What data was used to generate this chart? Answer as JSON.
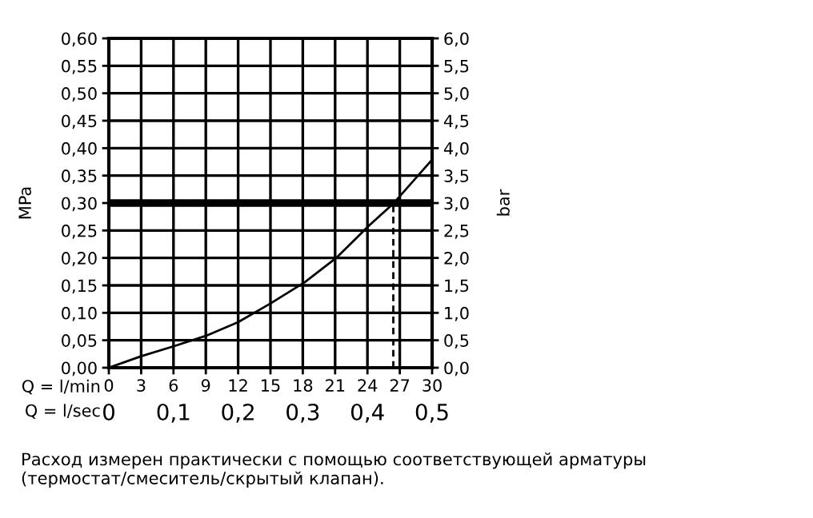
{
  "chart_data": {
    "type": "line",
    "xlabel": "Q = l/min",
    "x2label": "Q = l/sec",
    "ylabel": "MPa",
    "y2label": "bar",
    "xlim": [
      0,
      30
    ],
    "xticks": [
      0,
      3,
      6,
      9,
      12,
      15,
      18,
      21,
      24,
      27,
      30
    ],
    "x2lim": [
      0,
      0.5
    ],
    "x2ticks": [
      0,
      {
        "value": 0.1,
        "label": "0,1"
      },
      {
        "value": 0.2,
        "label": "0,2"
      },
      {
        "value": 0.3,
        "label": "0,3"
      },
      {
        "value": 0.4,
        "label": "0,4"
      },
      {
        "value": 0.5,
        "label": "0,5"
      }
    ],
    "ylim": [
      0,
      0.6
    ],
    "yticks": [
      {
        "value": 0,
        "label": "0,00"
      },
      {
        "value": 0.05,
        "label": "0,05"
      },
      {
        "value": 0.1,
        "label": "0,10"
      },
      {
        "value": 0.15,
        "label": "0,15"
      },
      {
        "value": 0.2,
        "label": "0,20"
      },
      {
        "value": 0.25,
        "label": "0,25"
      },
      {
        "value": 0.3,
        "label": "0,30"
      },
      {
        "value": 0.35,
        "label": "0,35"
      },
      {
        "value": 0.4,
        "label": "0,40"
      },
      {
        "value": 0.45,
        "label": "0,45"
      },
      {
        "value": 0.5,
        "label": "0,50"
      },
      {
        "value": 0.55,
        "label": "0,55"
      },
      {
        "value": 0.6,
        "label": "0,60"
      }
    ],
    "y2lim": [
      0,
      6
    ],
    "y2ticks": [
      {
        "value": 0,
        "label": "0,0"
      },
      {
        "value": 0.5,
        "label": "0,5"
      },
      {
        "value": 1,
        "label": "1,0"
      },
      {
        "value": 1.5,
        "label": "1,5"
      },
      {
        "value": 2,
        "label": "2,0"
      },
      {
        "value": 2.5,
        "label": "2,5"
      },
      {
        "value": 3,
        "label": "3,0"
      },
      {
        "value": 3.5,
        "label": "3,5"
      },
      {
        "value": 4,
        "label": "4,0"
      },
      {
        "value": 4.5,
        "label": "4,5"
      },
      {
        "value": 5,
        "label": "5,0"
      },
      {
        "value": 5.5,
        "label": "5,5"
      },
      {
        "value": 6,
        "label": "6,0"
      }
    ],
    "grid": true,
    "marker": "none",
    "series": [
      {
        "color": "#000000",
        "line_style": "solid",
        "x": [
          0,
          3,
          6,
          9,
          12,
          15,
          18.2,
          21.1,
          24.1,
          26.4,
          30
        ],
        "values": [
          0,
          0.021,
          0.039,
          0.058,
          0.083,
          0.117,
          0.156,
          0.2,
          0.258,
          0.299,
          0.379
        ]
      },
      {
        "color": "#000000",
        "line_style": "dashed",
        "x": [
          26.4,
          26.4
        ],
        "values": [
          0,
          0.3
        ]
      }
    ],
    "ref_lines": [
      {
        "axis": "y",
        "value": 0.3,
        "color": "#000000"
      }
    ],
    "annotations": [
      "Расход измерен практически с помощью соответствующей арматуры (термостат/смеситель/скрытый клапан)."
    ]
  }
}
